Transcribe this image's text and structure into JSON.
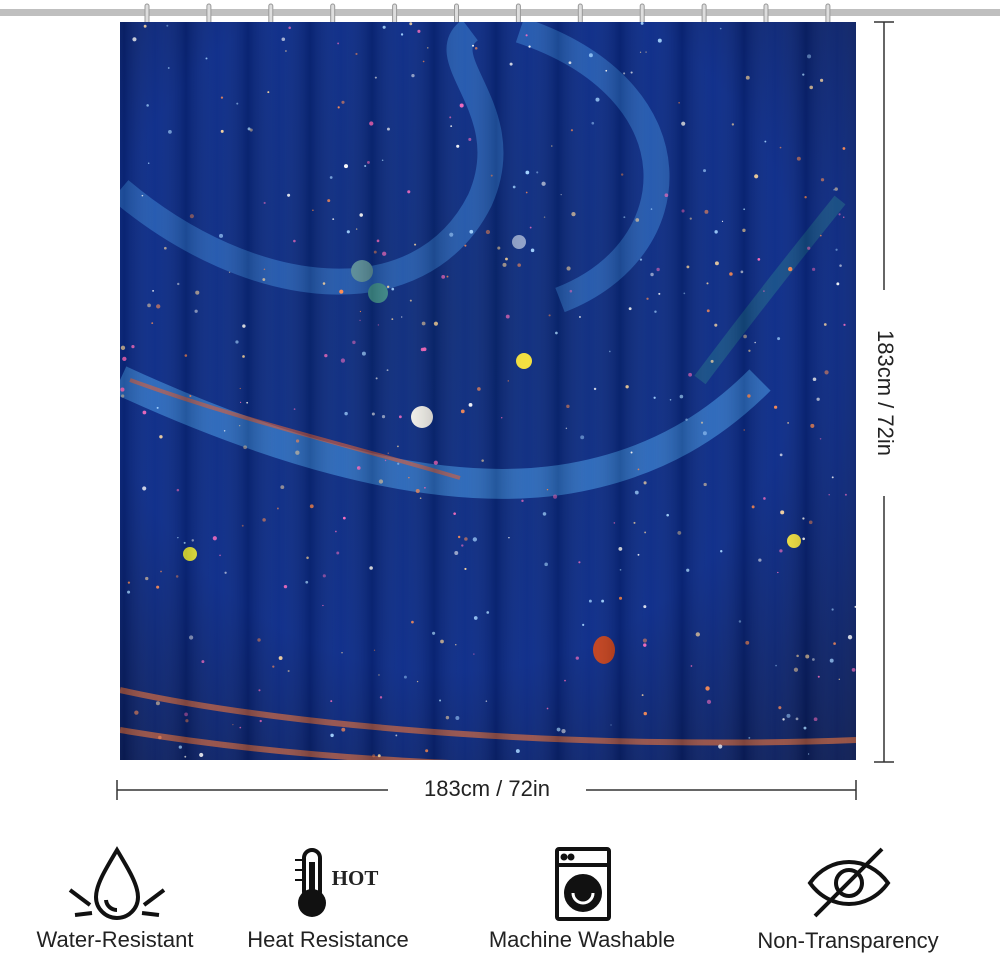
{
  "dimensions": {
    "height": "183cm / 72in",
    "width": "183cm / 72in"
  },
  "features": [
    {
      "label": "Water-Resistant"
    },
    {
      "label": "Heat Resistance",
      "badge": "HOT"
    },
    {
      "label": "Machine Washable"
    },
    {
      "label": "Non-Transparency"
    }
  ]
}
